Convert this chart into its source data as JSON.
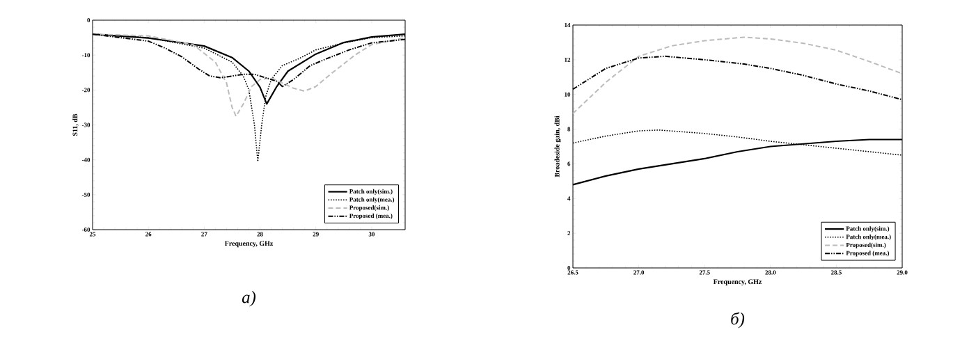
{
  "chart_data": [
    {
      "type": "line",
      "xlabel": "Frequency,  GHz",
      "ylabel": "S11,  dB",
      "xlim": [
        25,
        30.6
      ],
      "ylim": [
        -60,
        0
      ],
      "xticks": [
        25,
        26,
        27,
        28,
        29,
        30
      ],
      "yticks": [
        -60,
        -50,
        -40,
        -30,
        -20,
        -10,
        0
      ],
      "legend": "bottom right",
      "grid": false,
      "annotations": [
        "а)"
      ],
      "series": [
        {
          "name": "Patch only(sim.)",
          "color": "#000000",
          "line_style": "solid",
          "x": [
            25,
            26,
            27,
            27.5,
            27.8,
            28.0,
            28.12,
            28.3,
            28.5,
            29,
            29.5,
            30,
            30.6
          ],
          "values": [
            -4,
            -5.1,
            -7.4,
            -10.7,
            -14.6,
            -19.2,
            -24,
            -19,
            -14.6,
            -9.7,
            -6.4,
            -4.8,
            -4
          ]
        },
        {
          "name": "Patch only(mea.)",
          "color": "#000000",
          "line_style": "dotted",
          "x": [
            25,
            26,
            27,
            27.5,
            27.7,
            27.8,
            27.9,
            27.96,
            28.03,
            28.1,
            28.2,
            28.4,
            28.7,
            29,
            29.5,
            30,
            30.6
          ],
          "values": [
            -4,
            -5,
            -8,
            -12,
            -16,
            -20,
            -30,
            -40.5,
            -30,
            -22,
            -17,
            -13,
            -11,
            -8.5,
            -6.5,
            -5,
            -4.5
          ]
        },
        {
          "name": "Proposed(sim.)",
          "color": "#bbbbbb",
          "line_style": "dashed",
          "x": [
            25,
            26,
            26.8,
            27.2,
            27.4,
            27.5,
            27.57,
            27.7,
            27.85,
            28.0,
            28.2,
            28.4,
            28.6,
            28.8,
            29.0,
            29.3,
            29.7,
            30.0,
            30.6
          ],
          "values": [
            -4,
            -4.5,
            -7,
            -12,
            -18,
            -25,
            -27.5,
            -24,
            -19,
            -17,
            -16.5,
            -18,
            -19.5,
            -20.3,
            -19,
            -15,
            -10,
            -7,
            -5
          ]
        },
        {
          "name": "Proposed (mea.)",
          "color": "#000000",
          "line_style": "dashdotdotted",
          "x": [
            25,
            25.5,
            26,
            26.3,
            26.6,
            26.9,
            27.1,
            27.3,
            27.5,
            27.7,
            27.9,
            28.1,
            28.3,
            28.4,
            28.6,
            28.9,
            29.2,
            29.6,
            30.0,
            30.6
          ],
          "values": [
            -4,
            -5,
            -6,
            -8,
            -10.5,
            -14,
            -16,
            -16.5,
            -16,
            -15.5,
            -15.5,
            -16.5,
            -17.5,
            -19,
            -17,
            -13,
            -11,
            -8.5,
            -6.5,
            -5.5
          ]
        }
      ]
    },
    {
      "type": "line",
      "xlabel": "Frequency,  GHz",
      "ylabel": "Broadeside gain, dBi",
      "xlim": [
        26.5,
        29.0
      ],
      "ylim": [
        0,
        14
      ],
      "xticks": [
        {
          "value": 26.5,
          "label": "26.5"
        },
        {
          "value": 27,
          "label": "27.0"
        },
        {
          "value": 27.5,
          "label": "27.5"
        },
        {
          "value": 28,
          "label": "28.0"
        },
        {
          "value": 28.5,
          "label": "28.5"
        },
        {
          "value": 29,
          "label": "29.0"
        }
      ],
      "yticks": [
        0,
        2,
        4,
        6,
        8,
        10,
        12,
        14
      ],
      "legend": "bottom right",
      "grid": false,
      "annotations": [
        "б)"
      ],
      "series": [
        {
          "name": "Patch only(sim.)",
          "color": "#000000",
          "line_style": "solid",
          "x": [
            26.5,
            26.75,
            27.0,
            27.25,
            27.5,
            27.75,
            28.0,
            28.25,
            28.5,
            28.75,
            29.0
          ],
          "values": [
            4.8,
            5.3,
            5.7,
            6.0,
            6.3,
            6.7,
            7.0,
            7.15,
            7.3,
            7.4,
            7.4
          ]
        },
        {
          "name": "Patch only(mea.)",
          "color": "#000000",
          "line_style": "dotted",
          "x": [
            26.5,
            26.75,
            27.0,
            27.15,
            27.5,
            27.75,
            28.0,
            28.25,
            28.5,
            28.75,
            29.0
          ],
          "values": [
            7.2,
            7.6,
            7.9,
            7.95,
            7.75,
            7.55,
            7.3,
            7.1,
            6.9,
            6.7,
            6.5
          ]
        },
        {
          "name": "Proposed(sim.)",
          "color": "#bbbbbb",
          "line_style": "dashed",
          "x": [
            26.5,
            26.75,
            27.0,
            27.25,
            27.5,
            27.8,
            28.0,
            28.25,
            28.5,
            28.75,
            29.0
          ],
          "values": [
            8.9,
            10.7,
            12.2,
            12.8,
            13.1,
            13.3,
            13.2,
            12.95,
            12.55,
            11.9,
            11.2
          ]
        },
        {
          "name": "Proposed (mea.)",
          "color": "#000000",
          "line_style": "dashdotdotted",
          "x": [
            26.5,
            26.75,
            27.0,
            27.2,
            27.5,
            27.8,
            28.0,
            28.25,
            28.5,
            28.75,
            29.0
          ],
          "values": [
            10.3,
            11.5,
            12.1,
            12.2,
            12.0,
            11.75,
            11.5,
            11.1,
            10.6,
            10.2,
            9.7
          ]
        }
      ]
    }
  ]
}
